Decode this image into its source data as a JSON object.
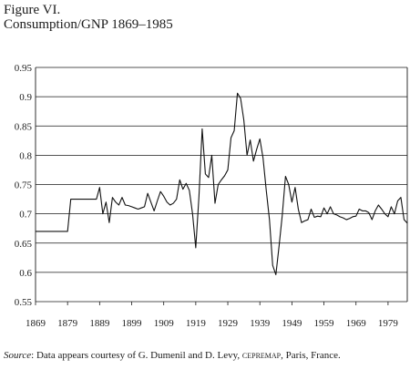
{
  "figure": {
    "title": "Figure VI.",
    "subtitle": "Consumption/GNP 1869–1985"
  },
  "source_note": {
    "label": "Source",
    "text_before": ": Data appears courtesy of G. Dumenil and D. Levy, ",
    "org": "cepremap",
    "text_after": ", Paris, France."
  },
  "chart_data": {
    "type": "line",
    "title": "Consumption/GNP 1869–1985",
    "xlabel": "",
    "ylabel": "",
    "xlim": [
      1869,
      1985
    ],
    "ylim": [
      0.55,
      0.95
    ],
    "x_ticks": [
      1869,
      1879,
      1889,
      1899,
      1909,
      1919,
      1929,
      1939,
      1949,
      1959,
      1969,
      1979
    ],
    "y_ticks": [
      0.55,
      0.6,
      0.65,
      0.7,
      0.75,
      0.8,
      0.85,
      0.9,
      0.95
    ],
    "y_tick_labels": [
      "0.55",
      "0.6",
      "0.65",
      "0.7",
      "0.75",
      "0.8",
      "0.85",
      "0.9",
      "0.95"
    ],
    "grid": "horizontal",
    "series": [
      {
        "x": [
          1869,
          1870,
          1871,
          1872,
          1873,
          1874,
          1875,
          1876,
          1877,
          1878,
          1879,
          1880,
          1881,
          1882,
          1883,
          1884,
          1885,
          1886,
          1887,
          1888,
          1889,
          1890,
          1891,
          1892,
          1893,
          1894,
          1895,
          1896,
          1897,
          1898,
          1899,
          1900,
          1901,
          1902,
          1903,
          1904,
          1905,
          1906,
          1907,
          1908,
          1909,
          1910,
          1911,
          1912,
          1913,
          1914,
          1915,
          1916,
          1917,
          1918,
          1919,
          1920,
          1921,
          1922,
          1923,
          1924,
          1925,
          1926,
          1927,
          1928,
          1929,
          1930,
          1931,
          1932,
          1933,
          1934,
          1935,
          1936,
          1937,
          1938,
          1939,
          1940,
          1941,
          1942,
          1943,
          1944,
          1945,
          1946,
          1947,
          1948,
          1949,
          1950,
          1951,
          1952,
          1953,
          1954,
          1955,
          1956,
          1957,
          1958,
          1959,
          1960,
          1961,
          1962,
          1963,
          1964,
          1965,
          1966,
          1967,
          1968,
          1969,
          1970,
          1971,
          1972,
          1973,
          1974,
          1975,
          1976,
          1977,
          1978,
          1979,
          1980,
          1981,
          1982,
          1983,
          1984,
          1985
        ],
        "values": [
          0.67,
          0.67,
          0.67,
          0.67,
          0.67,
          0.67,
          0.67,
          0.67,
          0.67,
          0.67,
          0.67,
          0.725,
          0.725,
          0.725,
          0.725,
          0.725,
          0.725,
          0.725,
          0.725,
          0.725,
          0.745,
          0.7,
          0.72,
          0.685,
          0.728,
          0.72,
          0.715,
          0.728,
          0.715,
          0.714,
          0.712,
          0.71,
          0.708,
          0.71,
          0.712,
          0.735,
          0.72,
          0.705,
          0.722,
          0.738,
          0.73,
          0.72,
          0.715,
          0.718,
          0.725,
          0.758,
          0.742,
          0.752,
          0.74,
          0.7,
          0.642,
          0.73,
          0.845,
          0.768,
          0.762,
          0.8,
          0.718,
          0.75,
          0.758,
          0.765,
          0.775,
          0.83,
          0.842,
          0.906,
          0.897,
          0.86,
          0.8,
          0.826,
          0.79,
          0.81,
          0.828,
          0.795,
          0.74,
          0.69,
          0.612,
          0.596,
          0.645,
          0.698,
          0.764,
          0.75,
          0.72,
          0.745,
          0.708,
          0.685,
          0.688,
          0.69,
          0.708,
          0.694,
          0.696,
          0.695,
          0.71,
          0.7,
          0.712,
          0.7,
          0.698,
          0.695,
          0.693,
          0.69,
          0.692,
          0.695,
          0.696,
          0.708,
          0.705,
          0.705,
          0.702,
          0.69,
          0.705,
          0.715,
          0.708,
          0.7,
          0.695,
          0.712,
          0.7,
          0.722,
          0.728,
          0.69,
          0.684
        ]
      }
    ]
  }
}
